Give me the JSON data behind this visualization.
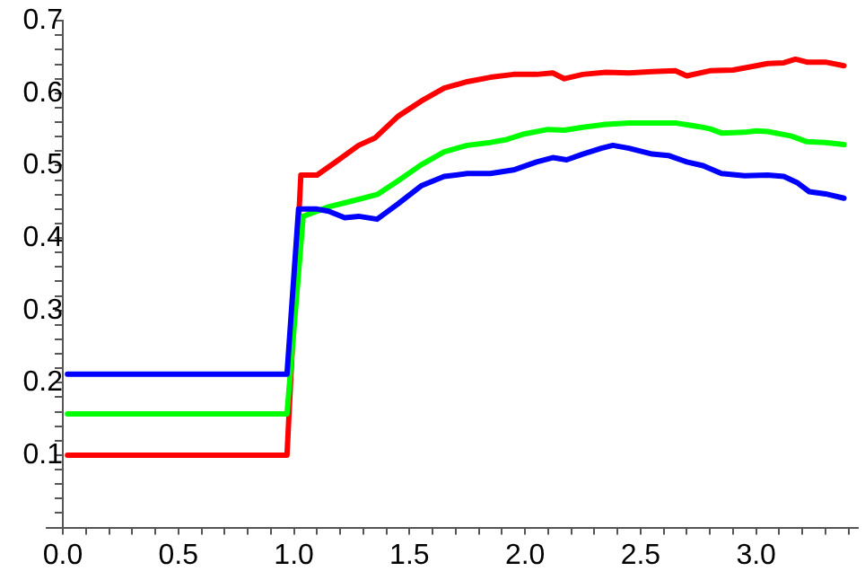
{
  "chart_data": {
    "type": "line",
    "xlim": [
      -0.07,
      3.44
    ],
    "ylim": [
      0,
      0.7
    ],
    "xticks": [
      {
        "value": 0,
        "label": "0.0"
      },
      {
        "value": 0.1,
        "label": null
      },
      {
        "value": 0.2,
        "label": null
      },
      {
        "value": 0.3,
        "label": null
      },
      {
        "value": 0.4,
        "label": null
      },
      {
        "value": 0.5,
        "label": "0.5"
      },
      {
        "value": 0.6,
        "label": null
      },
      {
        "value": 0.7,
        "label": null
      },
      {
        "value": 0.8,
        "label": null
      },
      {
        "value": 0.9,
        "label": null
      },
      {
        "value": 1,
        "label": "1.0"
      },
      {
        "value": 1.1,
        "label": null
      },
      {
        "value": 1.2,
        "label": null
      },
      {
        "value": 1.3,
        "label": null
      },
      {
        "value": 1.4,
        "label": null
      },
      {
        "value": 1.5,
        "label": "1.5"
      },
      {
        "value": 1.6,
        "label": null
      },
      {
        "value": 1.7,
        "label": null
      },
      {
        "value": 1.8,
        "label": null
      },
      {
        "value": 1.9,
        "label": null
      },
      {
        "value": 2,
        "label": "2.0"
      },
      {
        "value": 2.1,
        "label": null
      },
      {
        "value": 2.2,
        "label": null
      },
      {
        "value": 2.3,
        "label": null
      },
      {
        "value": 2.4,
        "label": null
      },
      {
        "value": 2.5,
        "label": "2.5"
      },
      {
        "value": 2.6,
        "label": null
      },
      {
        "value": 2.7,
        "label": null
      },
      {
        "value": 2.8,
        "label": null
      },
      {
        "value": 2.9,
        "label": null
      },
      {
        "value": 3,
        "label": "3.0"
      },
      {
        "value": 3.1,
        "label": null
      },
      {
        "value": 3.2,
        "label": null
      },
      {
        "value": 3.3,
        "label": null
      },
      {
        "value": 3.4,
        "label": null
      }
    ],
    "yticks": [
      {
        "value": 0.02,
        "label": null
      },
      {
        "value": 0.04,
        "label": null
      },
      {
        "value": 0.06,
        "label": null
      },
      {
        "value": 0.08,
        "label": null
      },
      0.1,
      {
        "value": 0.12,
        "label": null
      },
      {
        "value": 0.14,
        "label": null
      },
      {
        "value": 0.16,
        "label": null
      },
      {
        "value": 0.18,
        "label": null
      },
      0.2,
      {
        "value": 0.22,
        "label": null
      },
      {
        "value": 0.24,
        "label": null
      },
      {
        "value": 0.26,
        "label": null
      },
      {
        "value": 0.28,
        "label": null
      },
      0.3,
      {
        "value": 0.32,
        "label": null
      },
      {
        "value": 0.34,
        "label": null
      },
      {
        "value": 0.36,
        "label": null
      },
      {
        "value": 0.38,
        "label": null
      },
      0.4,
      {
        "value": 0.42,
        "label": null
      },
      {
        "value": 0.44,
        "label": null
      },
      {
        "value": 0.46,
        "label": null
      },
      {
        "value": 0.48,
        "label": null
      },
      0.5,
      {
        "value": 0.52,
        "label": null
      },
      {
        "value": 0.54,
        "label": null
      },
      {
        "value": 0.56,
        "label": null
      },
      {
        "value": 0.58,
        "label": null
      },
      0.6,
      {
        "value": 0.62,
        "label": null
      },
      {
        "value": 0.64,
        "label": null
      },
      {
        "value": 0.66,
        "label": null
      },
      {
        "value": 0.68,
        "label": null
      },
      0.7
    ],
    "grid": false,
    "legend": false,
    "marker": "none",
    "line_style": "solid",
    "series": [
      {
        "color": "#ff0000",
        "x": [
          0.02,
          0.97,
          1.03,
          1.1,
          1.18,
          1.28,
          1.35,
          1.45,
          1.55,
          1.65,
          1.75,
          1.85,
          1.95,
          2.05,
          2.12,
          2.17,
          2.25,
          2.35,
          2.45,
          2.55,
          2.65,
          2.7,
          2.8,
          2.9,
          3.0,
          3.05,
          3.12,
          3.17,
          3.22,
          3.3,
          3.38
        ],
        "values": [
          0.1,
          0.1,
          0.487,
          0.487,
          0.505,
          0.528,
          0.538,
          0.568,
          0.589,
          0.607,
          0.616,
          0.622,
          0.626,
          0.626,
          0.628,
          0.62,
          0.626,
          0.629,
          0.628,
          0.63,
          0.631,
          0.624,
          0.631,
          0.632,
          0.638,
          0.641,
          0.642,
          0.647,
          0.643,
          0.643,
          0.638
        ]
      },
      {
        "color": "#00ff00",
        "x": [
          0.02,
          0.97,
          1.04,
          1.15,
          1.25,
          1.36,
          1.45,
          1.55,
          1.65,
          1.75,
          1.85,
          1.92,
          2.0,
          2.1,
          2.17,
          2.25,
          2.35,
          2.45,
          2.55,
          2.65,
          2.75,
          2.8,
          2.85,
          2.95,
          3.0,
          3.05,
          3.15,
          3.22,
          3.3,
          3.38
        ],
        "values": [
          0.157,
          0.157,
          0.43,
          0.443,
          0.451,
          0.46,
          0.479,
          0.501,
          0.519,
          0.528,
          0.532,
          0.536,
          0.544,
          0.55,
          0.549,
          0.553,
          0.557,
          0.559,
          0.559,
          0.559,
          0.554,
          0.551,
          0.545,
          0.546,
          0.548,
          0.547,
          0.541,
          0.533,
          0.532,
          0.529
        ]
      },
      {
        "color": "#0000ff",
        "x": [
          0.02,
          0.97,
          1.02,
          1.1,
          1.15,
          1.22,
          1.28,
          1.36,
          1.45,
          1.55,
          1.65,
          1.75,
          1.85,
          1.95,
          2.05,
          2.12,
          2.18,
          2.25,
          2.33,
          2.38,
          2.45,
          2.55,
          2.62,
          2.7,
          2.77,
          2.85,
          2.95,
          3.05,
          3.12,
          3.18,
          3.23,
          3.3,
          3.38
        ],
        "values": [
          0.212,
          0.212,
          0.44,
          0.44,
          0.437,
          0.428,
          0.43,
          0.426,
          0.447,
          0.472,
          0.485,
          0.489,
          0.489,
          0.494,
          0.505,
          0.511,
          0.508,
          0.516,
          0.524,
          0.528,
          0.524,
          0.516,
          0.514,
          0.505,
          0.5,
          0.489,
          0.486,
          0.487,
          0.485,
          0.476,
          0.464,
          0.461,
          0.455
        ]
      }
    ]
  }
}
